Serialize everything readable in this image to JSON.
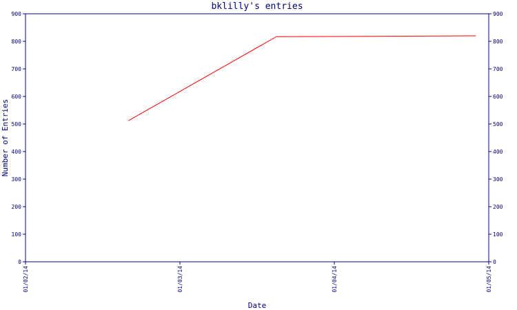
{
  "chart_data": {
    "type": "line",
    "title": "bklilly's entries",
    "xlabel": "Date",
    "ylabel": "Number of Entries",
    "x_ticks": [
      "01/02/14",
      "01/03/14",
      "01/04/14",
      "01/05/14"
    ],
    "xlim": [
      "2014-01-02",
      "2014-01-05"
    ],
    "y_ticks": [
      0,
      100,
      200,
      300,
      400,
      500,
      600,
      700,
      800,
      900
    ],
    "ylim": [
      0,
      900
    ],
    "grid": false,
    "series": [
      {
        "color": "#ff0000",
        "points": [
          {
            "x": "2014-01-02T16:00",
            "y": 512
          },
          {
            "x": "2014-01-03T15:00",
            "y": 817
          },
          {
            "x": "2014-01-04T06:00",
            "y": 818
          },
          {
            "x": "2014-01-04T22:00",
            "y": 820
          }
        ]
      }
    ],
    "colors": {
      "axis": "#000080",
      "line": "#ff0000"
    }
  }
}
